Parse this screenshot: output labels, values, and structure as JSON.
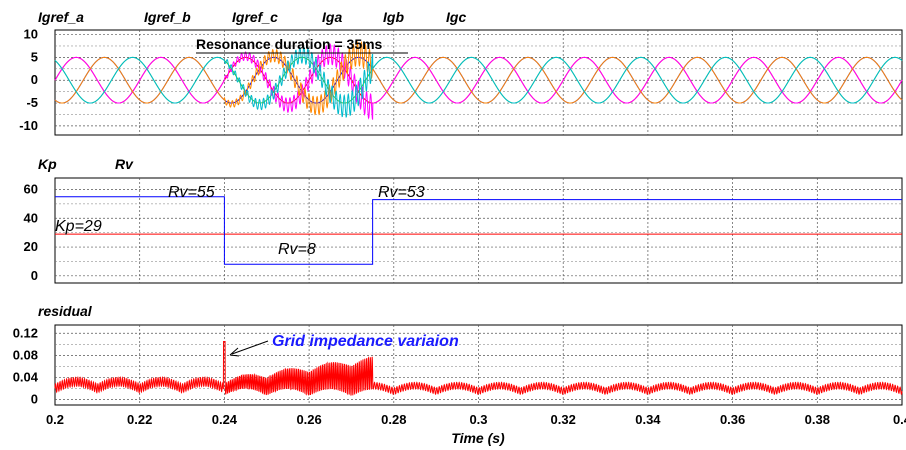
{
  "chart_data": [
    {
      "type": "line",
      "panel": "currents",
      "legend": [
        {
          "name": "Igref_a",
          "color": "#ff0000"
        },
        {
          "name": "Igref_b",
          "color": "#0000ff"
        },
        {
          "name": "Igref_c",
          "color": "#33cc33"
        },
        {
          "name": "Iga",
          "color": "#ff00ff"
        },
        {
          "name": "Igb",
          "color": "#ff8800"
        },
        {
          "name": "Igc",
          "color": "#00bbcc"
        }
      ],
      "ylim": [
        -12,
        11
      ],
      "yticks": [
        10,
        5,
        0,
        -5,
        -10
      ],
      "xlim": [
        0.2,
        0.4
      ],
      "amplitude": 5,
      "frequency_hz": 50,
      "resonance_window": [
        0.24,
        0.275
      ],
      "annotation": "Resonance duration = 35ms",
      "grid": true
    },
    {
      "type": "line",
      "panel": "parameters",
      "legend": [
        {
          "name": "Kp",
          "color": "#ff0000"
        },
        {
          "name": "Rv",
          "color": "#0000ff"
        }
      ],
      "ylim": [
        -5,
        68
      ],
      "yticks": [
        60,
        40,
        20,
        0
      ],
      "xlim": [
        0.2,
        0.4
      ],
      "series": [
        {
          "name": "Kp",
          "points": [
            [
              0.2,
              29
            ],
            [
              0.4,
              29
            ]
          ]
        },
        {
          "name": "Rv",
          "points": [
            [
              0.2,
              55
            ],
            [
              0.24,
              55
            ],
            [
              0.24,
              8
            ],
            [
              0.275,
              8
            ],
            [
              0.275,
              53
            ],
            [
              0.4,
              53
            ]
          ]
        }
      ],
      "annotations": [
        "Rv=55",
        "Rv=53",
        "Kp=29",
        "Rv=8"
      ],
      "grid": true
    },
    {
      "type": "line",
      "panel": "residual",
      "legend": [
        {
          "name": "residual",
          "color": "#ff0000"
        }
      ],
      "ylim": [
        -0.01,
        0.135
      ],
      "yticks": [
        "0.12",
        "0.08",
        "0.04",
        "0"
      ],
      "ytick_values": [
        0.12,
        0.08,
        0.04,
        0
      ],
      "xlim": [
        0.2,
        0.4
      ],
      "xticks": [
        "0.2",
        "0.22",
        "0.24",
        "0.26",
        "0.28",
        "0.3",
        "0.32",
        "0.34",
        "0.36",
        "0.38",
        "0.4"
      ],
      "xtick_values": [
        0.2,
        0.22,
        0.24,
        0.26,
        0.28,
        0.3,
        0.32,
        0.34,
        0.36,
        0.38,
        0.4
      ],
      "xlabel": "Time (s)",
      "spike": {
        "x": 0.24,
        "y": 0.105
      },
      "annotation": "Grid impedance variaion",
      "grid": true
    }
  ]
}
